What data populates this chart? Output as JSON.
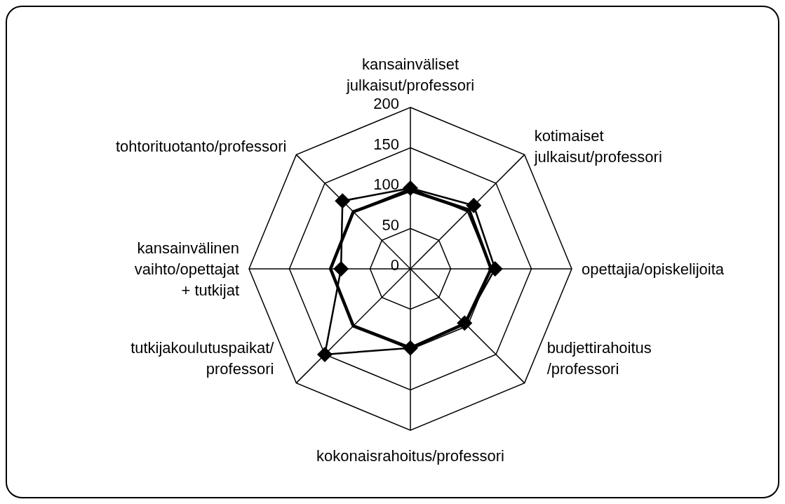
{
  "chart_data": {
    "type": "radar",
    "categories": [
      "kansainväliset\njulkaisut/professori",
      "kotimaiset\njulkaisut/professori",
      "opettajia/opiskelijoita",
      "budjettirahoitus\n/professori",
      "kokonaisrahoitus/professori",
      "tutkijakoulutuspaikat/\nprofessori",
      "kansainvälinen\nvaihto/opettajat\n+ tutkijat",
      "tohtorituotanto/professori"
    ],
    "series": [
      {
        "color": "#000000",
        "marker": "none",
        "values": [
          97,
          103,
          100,
          96,
          98,
          100,
          99,
          100
        ]
      },
      {
        "color": "#000000",
        "marker": "diamond",
        "values": [
          100,
          111,
          105,
          95,
          98,
          150,
          86,
          119
        ]
      }
    ],
    "ylim": [
      0,
      200
    ],
    "yticks": [
      0,
      50,
      100,
      150,
      200
    ],
    "grid": true
  }
}
